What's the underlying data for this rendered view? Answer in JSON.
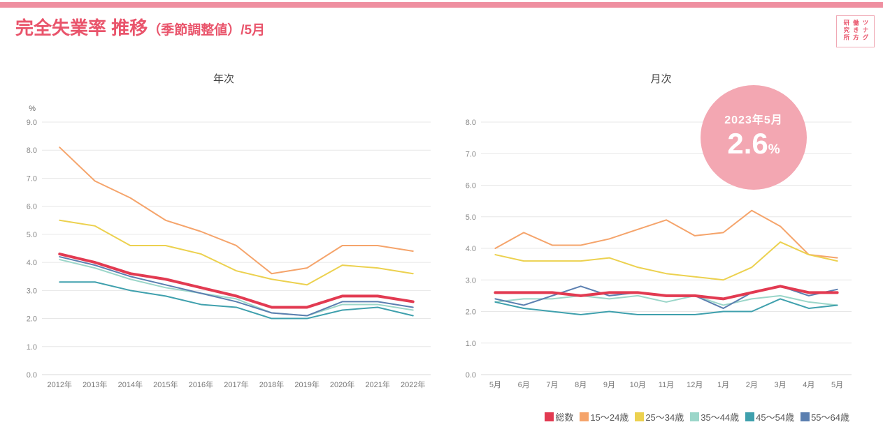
{
  "header": {
    "title_main": "完全失業率 推移",
    "title_sub": "（季節調整値）/5月",
    "logo": "ツナグ働き方研究所"
  },
  "badge": {
    "date": "2023年5月",
    "value": "2.6",
    "unit": "%"
  },
  "colors": {
    "accent": "#e9546b",
    "top_bar": "#ef8fa0",
    "badge_bg": "#f3a7b2",
    "logo_border": "#f0a8b4",
    "grid": "#e7e7e7",
    "grid_zero": "#d9d9d9"
  },
  "legend": [
    {
      "label": "総数",
      "color": "#e23a51"
    },
    {
      "label": "15〜24歳",
      "color": "#f5a46b"
    },
    {
      "label": "25〜34歳",
      "color": "#ecd14f"
    },
    {
      "label": "35〜44歳",
      "color": "#9bd6c9"
    },
    {
      "label": "45〜54歳",
      "color": "#3fa0ad"
    },
    {
      "label": "55〜64歳",
      "color": "#5b7fb0"
    }
  ],
  "chart_data": [
    {
      "type": "line",
      "title": "年次",
      "ylabel": "%",
      "ylim": [
        0,
        9
      ],
      "yticks": [
        "0.0",
        "1.0",
        "2.0",
        "3.0",
        "4.0",
        "5.0",
        "6.0",
        "7.0",
        "8.0",
        "9.0"
      ],
      "grid": true,
      "legend_position": "none",
      "categories": [
        "2012年",
        "2013年",
        "2014年",
        "2015年",
        "2016年",
        "2017年",
        "2018年",
        "2019年",
        "2020年",
        "2021年",
        "2022年"
      ],
      "series": [
        {
          "name": "15〜24歳",
          "color": "#f5a46b",
          "width": 2,
          "values": [
            8.1,
            6.9,
            6.3,
            5.5,
            5.1,
            4.6,
            3.6,
            3.8,
            4.6,
            4.6,
            4.4
          ]
        },
        {
          "name": "25〜34歳",
          "color": "#ecd14f",
          "width": 2,
          "values": [
            5.5,
            5.3,
            4.6,
            4.6,
            4.3,
            3.7,
            3.4,
            3.2,
            3.9,
            3.8,
            3.6
          ]
        },
        {
          "name": "35〜44歳",
          "color": "#9bd6c9",
          "width": 2,
          "values": [
            4.1,
            3.8,
            3.4,
            3.1,
            2.9,
            2.7,
            2.2,
            2.1,
            2.5,
            2.5,
            2.3
          ]
        },
        {
          "name": "45〜54歳",
          "color": "#3fa0ad",
          "width": 2,
          "values": [
            3.3,
            3.3,
            3.0,
            2.8,
            2.5,
            2.4,
            2.0,
            2.0,
            2.3,
            2.4,
            2.1
          ]
        },
        {
          "name": "55〜64歳",
          "color": "#5b7fb0",
          "width": 2,
          "values": [
            4.2,
            3.9,
            3.5,
            3.2,
            2.9,
            2.6,
            2.2,
            2.1,
            2.6,
            2.6,
            2.4
          ]
        },
        {
          "name": "総数",
          "color": "#e23a51",
          "width": 4,
          "values": [
            4.3,
            4.0,
            3.6,
            3.4,
            3.1,
            2.8,
            2.4,
            2.4,
            2.8,
            2.8,
            2.6
          ]
        }
      ]
    },
    {
      "type": "line",
      "title": "月次",
      "ylabel": "",
      "ylim": [
        0,
        8
      ],
      "yticks": [
        "0.0",
        "1.0",
        "2.0",
        "3.0",
        "4.0",
        "5.0",
        "6.0",
        "7.0",
        "8.0"
      ],
      "grid": true,
      "legend_position": "bottom-right",
      "categories": [
        "5月",
        "6月",
        "7月",
        "8月",
        "9月",
        "10月",
        "11月",
        "12月",
        "1月",
        "2月",
        "3月",
        "4月",
        "5月"
      ],
      "series": [
        {
          "name": "15〜24歳",
          "color": "#f5a46b",
          "width": 2,
          "values": [
            4.0,
            4.5,
            4.1,
            4.1,
            4.3,
            4.6,
            4.9,
            4.4,
            4.5,
            5.2,
            4.7,
            3.8,
            3.7
          ]
        },
        {
          "name": "25〜34歳",
          "color": "#ecd14f",
          "width": 2,
          "values": [
            3.8,
            3.6,
            3.6,
            3.6,
            3.7,
            3.4,
            3.2,
            3.1,
            3.0,
            3.4,
            4.2,
            3.8,
            3.6
          ]
        },
        {
          "name": "35〜44歳",
          "color": "#9bd6c9",
          "width": 2,
          "values": [
            2.3,
            2.4,
            2.4,
            2.5,
            2.4,
            2.5,
            2.3,
            2.5,
            2.2,
            2.4,
            2.5,
            2.3,
            2.2
          ]
        },
        {
          "name": "45〜54歳",
          "color": "#3fa0ad",
          "width": 2,
          "values": [
            2.3,
            2.1,
            2.0,
            1.9,
            2.0,
            1.9,
            1.9,
            1.9,
            2.0,
            2.0,
            2.4,
            2.1,
            2.2
          ]
        },
        {
          "name": "55〜64歳",
          "color": "#5b7fb0",
          "width": 2,
          "values": [
            2.4,
            2.2,
            2.5,
            2.8,
            2.5,
            2.6,
            2.5,
            2.5,
            2.1,
            2.6,
            2.8,
            2.5,
            2.7
          ]
        },
        {
          "name": "総数",
          "color": "#e23a51",
          "width": 4,
          "values": [
            2.6,
            2.6,
            2.6,
            2.5,
            2.6,
            2.6,
            2.5,
            2.5,
            2.4,
            2.6,
            2.8,
            2.6,
            2.6
          ]
        }
      ]
    }
  ]
}
